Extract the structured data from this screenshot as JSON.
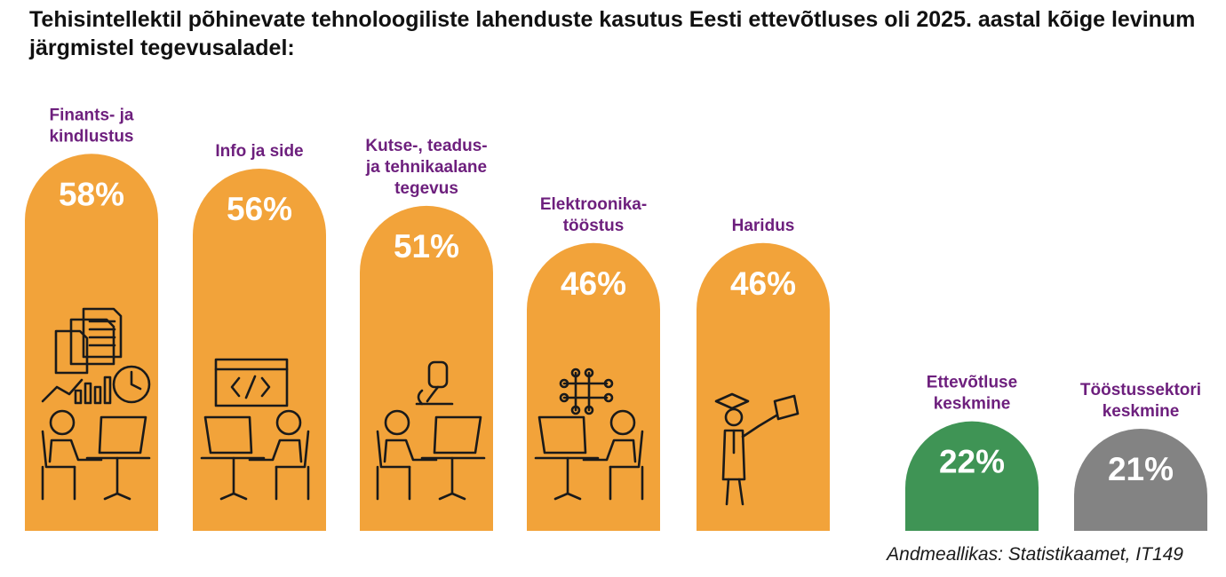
{
  "title": "Tehisintellektil põhinevate tehnoloogiliste lahenduste kasutus Eesti ettevõtluses oli 2025. aastal kõige levinum järgmistel tegevusaladel:",
  "source": "Andmeallikas: Statistikaamet, IT149",
  "colors": {
    "orange": "#f2a33a",
    "green": "#3f9455",
    "gray": "#838383",
    "label_purple": "#6d1f7d",
    "value_text": "#ffffff"
  },
  "chart_data": {
    "type": "bar",
    "title": "Tehisintellektil põhinevate tehnoloogiliste lahenduste kasutus Eesti ettevõtluses oli 2025. aastal kõige levinum järgmistel tegevusaladel:",
    "categories": [
      "Finants- ja kindlustus",
      "Info ja side",
      "Kutse-, teadus- ja tehnikaalane tegevus",
      "Elektroonikatööstus",
      "Haridus",
      "Ettevõtluse keskmine",
      "Tööstussektori keskmine"
    ],
    "values": [
      58,
      56,
      51,
      46,
      46,
      22,
      21
    ],
    "value_labels": [
      "58%",
      "56%",
      "51%",
      "46%",
      "46%",
      "22%",
      "21%"
    ],
    "label_lines": [
      [
        "Finants- ja",
        "kindlustus"
      ],
      [
        "Info ja side"
      ],
      [
        "Kutse-, teadus-",
        "ja tehnikaalane",
        "tegevus"
      ],
      [
        "Elektroonika-",
        "tööstus"
      ],
      [
        "Haridus"
      ],
      [
        "Ettevõtluse",
        "keskmine"
      ],
      [
        "Tööstussektori",
        "keskmine"
      ]
    ],
    "bar_colors": [
      "#f2a33a",
      "#f2a33a",
      "#f2a33a",
      "#f2a33a",
      "#f2a33a",
      "#3f9455",
      "#838383"
    ],
    "icons": [
      "documents-clock-growth-icon",
      "code-window-icon",
      "microscope-icon",
      "circuit-icon",
      "graduate-icon",
      "",
      ""
    ],
    "xlabel": "",
    "ylabel": "",
    "ylim": [
      0,
      60
    ],
    "grid": false,
    "legend": "none"
  }
}
